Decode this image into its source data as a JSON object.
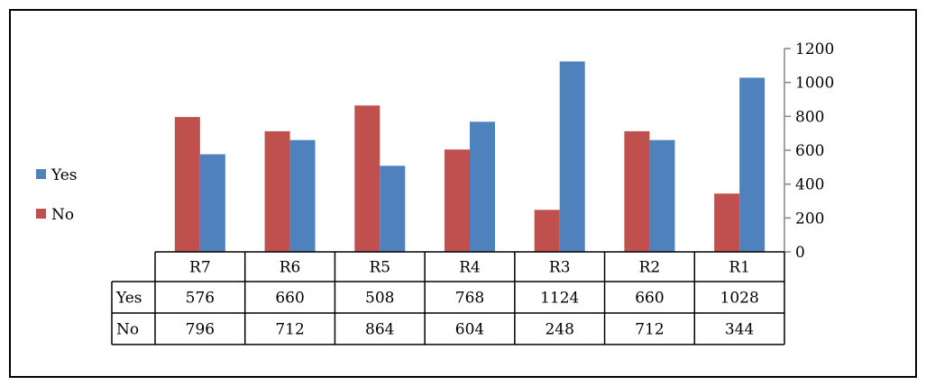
{
  "chart_data": {
    "type": "bar",
    "categories": [
      "R7",
      "R6",
      "R5",
      "R4",
      "R3",
      "R2",
      "R1"
    ],
    "series": [
      {
        "name": "Yes",
        "color": "#4f81bd",
        "values": [
          576,
          660,
          508,
          768,
          1124,
          660,
          1028
        ]
      },
      {
        "name": "No",
        "color": "#c0504d",
        "values": [
          796,
          712,
          864,
          604,
          248,
          712,
          344
        ]
      }
    ],
    "ylim": [
      0,
      1200
    ],
    "yticks": [
      0,
      200,
      400,
      600,
      800,
      1000,
      1200
    ],
    "axis_position": "right",
    "legend_position": "left",
    "data_table": true,
    "grid": false,
    "title": "",
    "xlabel": "",
    "ylabel": ""
  }
}
